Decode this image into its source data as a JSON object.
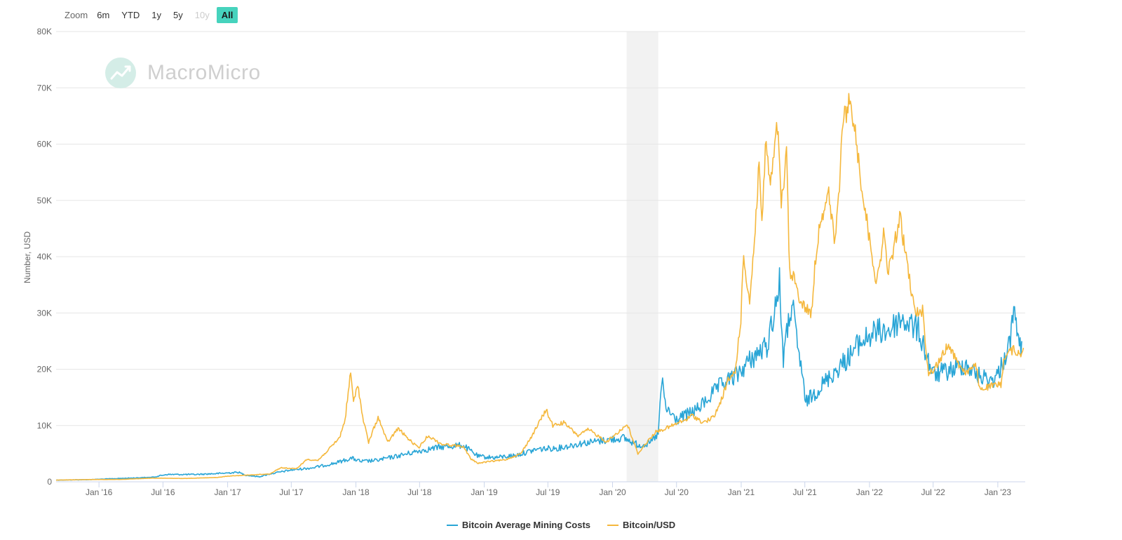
{
  "zoom": {
    "label": "Zoom",
    "buttons": [
      {
        "label": "6m",
        "state": "normal"
      },
      {
        "label": "YTD",
        "state": "normal"
      },
      {
        "label": "1y",
        "state": "normal"
      },
      {
        "label": "5y",
        "state": "normal"
      },
      {
        "label": "10y",
        "state": "disabled"
      },
      {
        "label": "All",
        "state": "active"
      }
    ]
  },
  "watermark": {
    "text": "MacroMicro",
    "icon": "macromicro-logo-icon",
    "color": "#d4ede7"
  },
  "chart_data": {
    "type": "line",
    "title": "",
    "xlabel": "",
    "ylabel": "Number, USD",
    "ylim": [
      0,
      80000
    ],
    "xlim": [
      "2015-09-01",
      "2023-03-20"
    ],
    "yticks": [
      {
        "value": 0,
        "label": "0"
      },
      {
        "value": 10000,
        "label": "10K"
      },
      {
        "value": 20000,
        "label": "20K"
      },
      {
        "value": 30000,
        "label": "30K"
      },
      {
        "value": 40000,
        "label": "40K"
      },
      {
        "value": 50000,
        "label": "50K"
      },
      {
        "value": 60000,
        "label": "60K"
      },
      {
        "value": 70000,
        "label": "70K"
      },
      {
        "value": 80000,
        "label": "80K"
      }
    ],
    "xticks": [
      {
        "date": "2016-01-01",
        "label": "Jan '16"
      },
      {
        "date": "2016-07-01",
        "label": "Jul '16"
      },
      {
        "date": "2017-01-01",
        "label": "Jan '17"
      },
      {
        "date": "2017-07-01",
        "label": "Jul '17"
      },
      {
        "date": "2018-01-01",
        "label": "Jan '18"
      },
      {
        "date": "2018-07-01",
        "label": "Jul '18"
      },
      {
        "date": "2019-01-01",
        "label": "Jan '19"
      },
      {
        "date": "2019-07-01",
        "label": "Jul '19"
      },
      {
        "date": "2020-01-01",
        "label": "Jan '20"
      },
      {
        "date": "2020-07-01",
        "label": "Jul '20"
      },
      {
        "date": "2021-01-01",
        "label": "Jan '21"
      },
      {
        "date": "2021-07-01",
        "label": "Jul '21"
      },
      {
        "date": "2022-01-01",
        "label": "Jan '22"
      },
      {
        "date": "2022-07-01",
        "label": "Jul '22"
      },
      {
        "date": "2023-01-01",
        "label": "Jan '23"
      }
    ],
    "grid": true,
    "legend_position": "bottom-center",
    "shaded_band": {
      "start": "2020-02-10",
      "end": "2020-05-10",
      "color": "#f2f2f2"
    },
    "series": [
      {
        "name": "Bitcoin Average Mining Costs",
        "color": "#29a5d6",
        "points": [
          [
            "2015-09-01",
            300
          ],
          [
            "2015-12-01",
            380
          ],
          [
            "2016-03-01",
            600
          ],
          [
            "2016-06-01",
            800
          ],
          [
            "2016-07-10",
            1300
          ],
          [
            "2016-10-01",
            1300
          ],
          [
            "2016-12-15",
            1500
          ],
          [
            "2017-02-01",
            1700
          ],
          [
            "2017-02-20",
            1200
          ],
          [
            "2017-04-01",
            900
          ],
          [
            "2017-05-01",
            1400
          ],
          [
            "2017-07-01",
            2100
          ],
          [
            "2017-09-01",
            2500
          ],
          [
            "2017-11-01",
            3300
          ],
          [
            "2017-12-20",
            4200
          ],
          [
            "2018-01-15",
            3600
          ],
          [
            "2018-03-01",
            3800
          ],
          [
            "2018-05-01",
            4600
          ],
          [
            "2018-07-01",
            5500
          ],
          [
            "2018-09-01",
            6200
          ],
          [
            "2018-11-01",
            6500
          ],
          [
            "2018-12-15",
            4500
          ],
          [
            "2019-02-01",
            4300
          ],
          [
            "2019-04-01",
            4700
          ],
          [
            "2019-06-01",
            5800
          ],
          [
            "2019-08-01",
            6000
          ],
          [
            "2019-10-01",
            6800
          ],
          [
            "2019-12-01",
            7300
          ],
          [
            "2020-02-01",
            7800
          ],
          [
            "2020-03-15",
            6500
          ],
          [
            "2020-04-15",
            6800
          ],
          [
            "2020-05-10",
            8500
          ],
          [
            "2020-05-20",
            18000
          ],
          [
            "2020-06-01",
            13000
          ],
          [
            "2020-07-01",
            11000
          ],
          [
            "2020-09-01",
            13000
          ],
          [
            "2020-11-01",
            17000
          ],
          [
            "2020-12-20",
            19000
          ],
          [
            "2021-02-01",
            22000
          ],
          [
            "2021-03-15",
            24000
          ],
          [
            "2021-04-20",
            35000
          ],
          [
            "2021-05-01",
            22000
          ],
          [
            "2021-05-25",
            32000
          ],
          [
            "2021-06-10",
            24000
          ],
          [
            "2021-06-25",
            19000
          ],
          [
            "2021-07-01",
            14000
          ],
          [
            "2021-08-01",
            16000
          ],
          [
            "2021-09-15",
            19000
          ],
          [
            "2021-11-01",
            22000
          ],
          [
            "2021-12-01",
            24500
          ],
          [
            "2022-01-15",
            26500
          ],
          [
            "2022-03-01",
            27000
          ],
          [
            "2022-04-01",
            29000
          ],
          [
            "2022-05-20",
            27000
          ],
          [
            "2022-06-15",
            22000
          ],
          [
            "2022-07-01",
            19000
          ],
          [
            "2022-09-01",
            20000
          ],
          [
            "2022-10-01",
            21000
          ],
          [
            "2022-11-01",
            19000
          ],
          [
            "2022-12-15",
            18000
          ],
          [
            "2023-01-01",
            19000
          ],
          [
            "2023-02-01",
            24000
          ],
          [
            "2023-02-20",
            31000
          ],
          [
            "2023-03-01",
            24000
          ],
          [
            "2023-03-10",
            25000
          ]
        ]
      },
      {
        "name": "Bitcoin/USD",
        "color": "#f5b83d",
        "points": [
          [
            "2015-09-01",
            300
          ],
          [
            "2015-12-01",
            400
          ],
          [
            "2016-03-01",
            420
          ],
          [
            "2016-06-01",
            650
          ],
          [
            "2016-09-01",
            600
          ],
          [
            "2016-12-01",
            760
          ],
          [
            "2017-01-01",
            1000
          ],
          [
            "2017-03-01",
            1200
          ],
          [
            "2017-05-01",
            1400
          ],
          [
            "2017-06-01",
            2500
          ],
          [
            "2017-07-15",
            2300
          ],
          [
            "2017-08-15",
            4000
          ],
          [
            "2017-09-15",
            3800
          ],
          [
            "2017-10-15",
            5700
          ],
          [
            "2017-11-15",
            7800
          ],
          [
            "2017-12-01",
            11000
          ],
          [
            "2017-12-17",
            19500
          ],
          [
            "2017-12-25",
            14000
          ],
          [
            "2018-01-06",
            17500
          ],
          [
            "2018-01-20",
            11500
          ],
          [
            "2018-02-06",
            7000
          ],
          [
            "2018-03-05",
            11500
          ],
          [
            "2018-04-01",
            7000
          ],
          [
            "2018-05-01",
            9500
          ],
          [
            "2018-06-01",
            7500
          ],
          [
            "2018-06-28",
            6000
          ],
          [
            "2018-07-25",
            8200
          ],
          [
            "2018-09-01",
            6700
          ],
          [
            "2018-11-01",
            6300
          ],
          [
            "2018-11-25",
            4000
          ],
          [
            "2018-12-15",
            3300
          ],
          [
            "2019-01-15",
            3600
          ],
          [
            "2019-03-01",
            3900
          ],
          [
            "2019-04-15",
            5000
          ],
          [
            "2019-05-15",
            8000
          ],
          [
            "2019-06-26",
            12800
          ],
          [
            "2019-07-15",
            10000
          ],
          [
            "2019-08-15",
            10500
          ],
          [
            "2019-09-25",
            8200
          ],
          [
            "2019-10-25",
            9300
          ],
          [
            "2019-12-15",
            7100
          ],
          [
            "2020-02-12",
            10200
          ],
          [
            "2020-03-13",
            5000
          ],
          [
            "2020-04-01",
            6500
          ],
          [
            "2020-05-01",
            8800
          ],
          [
            "2020-06-01",
            9500
          ],
          [
            "2020-07-27",
            11000
          ],
          [
            "2020-08-15",
            11800
          ],
          [
            "2020-09-15",
            10500
          ],
          [
            "2020-10-15",
            11500
          ],
          [
            "2020-11-01",
            13800
          ],
          [
            "2020-11-25",
            18000
          ],
          [
            "2020-12-15",
            19500
          ],
          [
            "2020-12-31",
            29000
          ],
          [
            "2021-01-08",
            40000
          ],
          [
            "2021-01-25",
            32000
          ],
          [
            "2021-02-10",
            45000
          ],
          [
            "2021-02-21",
            57000
          ],
          [
            "2021-03-01",
            46000
          ],
          [
            "2021-03-13",
            61000
          ],
          [
            "2021-03-25",
            52000
          ],
          [
            "2021-04-14",
            63500
          ],
          [
            "2021-04-25",
            49000
          ],
          [
            "2021-05-10",
            58000
          ],
          [
            "2021-05-19",
            37000
          ],
          [
            "2021-06-01",
            36000
          ],
          [
            "2021-06-22",
            31500
          ],
          [
            "2021-07-20",
            30000
          ],
          [
            "2021-08-01",
            40000
          ],
          [
            "2021-08-15",
            47000
          ],
          [
            "2021-09-07",
            51000
          ],
          [
            "2021-09-25",
            42000
          ],
          [
            "2021-10-20",
            65000
          ],
          [
            "2021-11-10",
            67500
          ],
          [
            "2021-12-01",
            57000
          ],
          [
            "2021-12-20",
            48000
          ],
          [
            "2022-01-22",
            35000
          ],
          [
            "2022-02-10",
            44000
          ],
          [
            "2022-02-24",
            37000
          ],
          [
            "2022-03-28",
            47000
          ],
          [
            "2022-04-15",
            40000
          ],
          [
            "2022-05-10",
            30000
          ],
          [
            "2022-06-01",
            30500
          ],
          [
            "2022-06-18",
            19000
          ],
          [
            "2022-07-15",
            21000
          ],
          [
            "2022-08-14",
            24500
          ],
          [
            "2022-09-10",
            21000
          ],
          [
            "2022-10-01",
            19500
          ],
          [
            "2022-11-01",
            20500
          ],
          [
            "2022-11-10",
            16500
          ],
          [
            "2022-12-15",
            17000
          ],
          [
            "2023-01-10",
            17300
          ],
          [
            "2023-01-20",
            22500
          ],
          [
            "2023-02-15",
            23500
          ],
          [
            "2023-03-05",
            22500
          ],
          [
            "2023-03-15",
            23800
          ]
        ]
      }
    ]
  }
}
